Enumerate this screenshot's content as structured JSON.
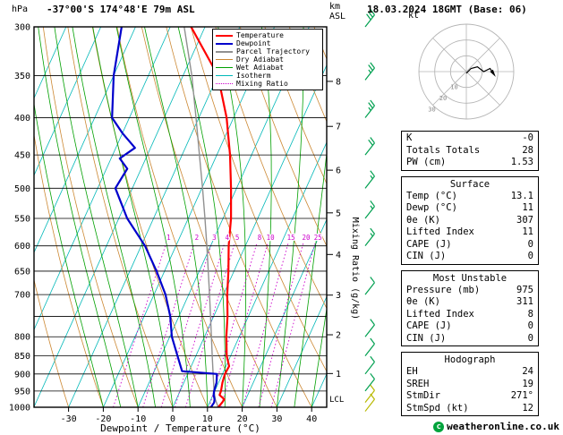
{
  "header": {
    "y_unit": "hPa",
    "title": "-37°00'S 174°48'E 79m ASL",
    "alt_unit_top": "km",
    "alt_unit_bottom": "ASL",
    "datetime": "18.03.2024 18GMT (Base: 06)"
  },
  "axes": {
    "pressure_ticks": [
      300,
      350,
      400,
      450,
      500,
      550,
      600,
      650,
      700,
      800,
      850,
      900,
      950,
      1000
    ],
    "pressure_gridlines": [
      300,
      350,
      400,
      450,
      500,
      550,
      600,
      650,
      700,
      750,
      800,
      850,
      900,
      950,
      1000
    ],
    "temp_ticks": [
      -30,
      -20,
      -10,
      0,
      10,
      20,
      30,
      40
    ],
    "x_label": "Dewpoint / Temperature (°C)",
    "right_label": "Mixing Ratio (g/kg)",
    "km_ticks": [
      {
        "km": 1,
        "p": 898.8
      },
      {
        "km": 2,
        "p": 795
      },
      {
        "km": 3,
        "p": 701.2
      },
      {
        "km": 4,
        "p": 616.6
      },
      {
        "km": 5,
        "p": 540.5
      },
      {
        "km": 6,
        "p": 472.2
      },
      {
        "km": 7,
        "p": 411.1
      },
      {
        "km": 8,
        "p": 356.5
      }
    ],
    "lcl_label": "LCL",
    "lcl_pressure": 975
  },
  "legend": [
    {
      "label": "Temperature",
      "color": "#ff0000",
      "thickness": 2,
      "style": "solid"
    },
    {
      "label": "Dewpoint",
      "color": "#0000cc",
      "thickness": 2,
      "style": "solid"
    },
    {
      "label": "Parcel Trajectory",
      "color": "#909090",
      "thickness": 2,
      "style": "solid"
    },
    {
      "label": "Dry Adiabat",
      "color": "#cc8833",
      "thickness": 1,
      "style": "solid"
    },
    {
      "label": "Wet Adiabat",
      "color": "#00a000",
      "thickness": 1,
      "style": "solid"
    },
    {
      "label": "Isotherm",
      "color": "#00b8b8",
      "thickness": 1,
      "style": "solid"
    },
    {
      "label": "Mixing Ratio",
      "color": "#cc00cc",
      "thickness": 1,
      "style": "dotted"
    }
  ],
  "chart_data": {
    "type": "skewt_log_p",
    "pressure_range_hpa": [
      300,
      1000
    ],
    "isotherm_step_c": 10,
    "dry_adiabat_step_c": 10,
    "wet_adiabat_step_c": 5,
    "mixing_ratio_lines_gkg": [
      1,
      2,
      3,
      4,
      5,
      8,
      10,
      15,
      20,
      25
    ],
    "colors": {
      "temperature": "#ff0000",
      "dewpoint": "#0000cc",
      "parcel": "#909090",
      "dry_adiabat": "#cc8833",
      "wet_adiabat": "#00a000",
      "isotherm": "#00b8b8",
      "mixing_ratio": "#cc00cc",
      "barb": "#00a050"
    },
    "series": [
      {
        "id": "parcel-trajectory",
        "name": "Parcel Trajectory",
        "color": "#909090",
        "width": 1.4,
        "points": [
          [
            1000,
            13.1
          ],
          [
            975,
            11.2
          ],
          [
            950,
            9.8
          ],
          [
            900,
            7.3
          ],
          [
            850,
            4.7
          ],
          [
            800,
            2
          ],
          [
            750,
            -0.9
          ],
          [
            700,
            -4
          ],
          [
            650,
            -7.4
          ],
          [
            600,
            -11.1
          ],
          [
            550,
            -15.2
          ],
          [
            500,
            -19.8
          ],
          [
            450,
            -25
          ],
          [
            400,
            -30.8
          ],
          [
            350,
            -37.5
          ],
          [
            300,
            -46
          ]
        ]
      },
      {
        "id": "dewpoint",
        "name": "Dewpoint",
        "color": "#0000cc",
        "width": 2.2,
        "points": [
          [
            1000,
            11
          ],
          [
            985,
            11.3
          ],
          [
            975,
            11
          ],
          [
            962,
            10.2
          ],
          [
            950,
            9.8
          ],
          [
            925,
            9.4
          ],
          [
            900,
            8.4
          ],
          [
            892,
            -2
          ],
          [
            850,
            -5.3
          ],
          [
            800,
            -9.4
          ],
          [
            750,
            -12.5
          ],
          [
            700,
            -16.7
          ],
          [
            650,
            -22.3
          ],
          [
            600,
            -28.9
          ],
          [
            550,
            -37.6
          ],
          [
            500,
            -44.9
          ],
          [
            470,
            -44
          ],
          [
            455,
            -47.5
          ],
          [
            440,
            -44.5
          ],
          [
            420,
            -50
          ],
          [
            400,
            -55
          ],
          [
            350,
            -60
          ],
          [
            300,
            -64
          ]
        ]
      },
      {
        "id": "temperature",
        "name": "Temperature",
        "color": "#ff0000",
        "width": 2.2,
        "points": [
          [
            1000,
            13.1
          ],
          [
            985,
            13.6
          ],
          [
            975,
            13.8
          ],
          [
            962,
            11.9
          ],
          [
            950,
            11.8
          ],
          [
            925,
            11.1
          ],
          [
            900,
            10.7
          ],
          [
            878,
            10.9
          ],
          [
            850,
            8.9
          ],
          [
            800,
            6.3
          ],
          [
            750,
            4
          ],
          [
            700,
            1.1
          ],
          [
            650,
            -1.6
          ],
          [
            600,
            -4.8
          ],
          [
            550,
            -7.7
          ],
          [
            500,
            -11.6
          ],
          [
            450,
            -16.2
          ],
          [
            400,
            -22
          ],
          [
            350,
            -30
          ],
          [
            300,
            -44
          ]
        ]
      }
    ],
    "wind_barbs": [
      {
        "p": 300,
        "kt": 30
      },
      {
        "p": 355,
        "kt": 25
      },
      {
        "p": 400,
        "kt": 25
      },
      {
        "p": 450,
        "kt": 20
      },
      {
        "p": 500,
        "kt": 15
      },
      {
        "p": 550,
        "kt": 15
      },
      {
        "p": 600,
        "kt": 15
      },
      {
        "p": 700,
        "kt": 10
      },
      {
        "p": 800,
        "kt": 10
      },
      {
        "p": 850,
        "kt": 10
      },
      {
        "p": 900,
        "kt": 10
      },
      {
        "p": 950,
        "kt": 10
      },
      {
        "p": 985,
        "kt": 10,
        "color": "#b8b800"
      },
      {
        "p": 1013,
        "kt": 12,
        "color": "#b8b800"
      }
    ]
  },
  "hodograph": {
    "unit": "kt",
    "rings_kt": [
      10,
      20,
      30
    ],
    "trace_kt": [
      [
        0,
        -1
      ],
      [
        3,
        2
      ],
      [
        7,
        3
      ],
      [
        11,
        0
      ],
      [
        15,
        2
      ],
      [
        17,
        -1
      ]
    ]
  },
  "panel": {
    "tables": [
      {
        "title": "",
        "rows": [
          [
            "K",
            "-0"
          ],
          [
            "Totals Totals",
            "28"
          ],
          [
            "PW (cm)",
            "1.53"
          ]
        ]
      },
      {
        "title": "Surface",
        "rows": [
          [
            "Temp (°C)",
            "13.1"
          ],
          [
            "Dewp (°C)",
            "11"
          ],
          [
            "θe (K)",
            "307"
          ],
          [
            "Lifted Index",
            "11"
          ],
          [
            "CAPE (J)",
            "0"
          ],
          [
            "CIN (J)",
            "0"
          ]
        ]
      },
      {
        "title": "Most Unstable",
        "rows": [
          [
            "Pressure (mb)",
            "975"
          ],
          [
            "θe (K)",
            "311"
          ],
          [
            "Lifted Index",
            "8"
          ],
          [
            "CAPE (J)",
            "0"
          ],
          [
            "CIN (J)",
            "0"
          ]
        ]
      },
      {
        "title": "Hodograph",
        "rows": [
          [
            "EH",
            "24"
          ],
          [
            "SREH",
            "19"
          ],
          [
            "StmDir",
            "271°"
          ],
          [
            "StmSpd (kt)",
            "12"
          ]
        ]
      }
    ]
  },
  "footer": {
    "copyright": "weatheronline.co.uk",
    "copyright_symbol": "c"
  }
}
